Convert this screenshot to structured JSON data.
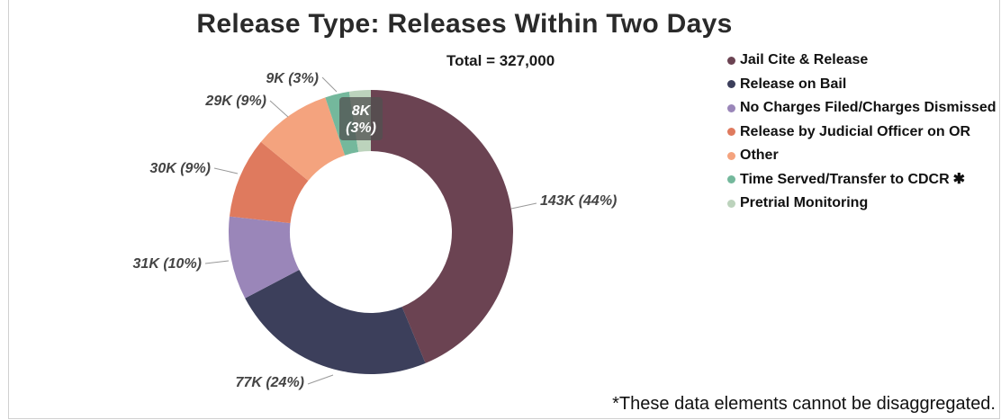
{
  "chart_data": {
    "type": "pie",
    "donut": true,
    "title": "Release Type: Releases Within Two Days",
    "subtitle": "Total = 327,000",
    "series": [
      {
        "name": "Jail Cite & Release",
        "value": 143,
        "label": "143K (44%)",
        "color": "#6b4352"
      },
      {
        "name": "Release on Bail",
        "value": 77,
        "label": "77K (24%)",
        "color": "#3c3f5b"
      },
      {
        "name": "No Charges Filed/Charges Dismissed",
        "value": 31,
        "label": "31K (10%)",
        "color": "#9a86b9"
      },
      {
        "name": "Release by Judicial Officer on OR",
        "value": 30,
        "label": "30K (9%)",
        "color": "#df7a5e"
      },
      {
        "name": "Other",
        "value": 29,
        "label": "29K (9%)",
        "color": "#f4a37e"
      },
      {
        "name": "Time Served/Transfer to CDCR",
        "value": 9,
        "label": "9K (3%)",
        "color": "#74b89c"
      },
      {
        "name": "Pretrial Monitoring",
        "value": 8,
        "label": "8K\n(3%)",
        "color": "#bcd3bc"
      }
    ],
    "legend_position": "right",
    "legend_markers": [
      "",
      "",
      "",
      "",
      "",
      "✱",
      ""
    ],
    "footnote": "*These data elements cannot be disaggregated."
  }
}
